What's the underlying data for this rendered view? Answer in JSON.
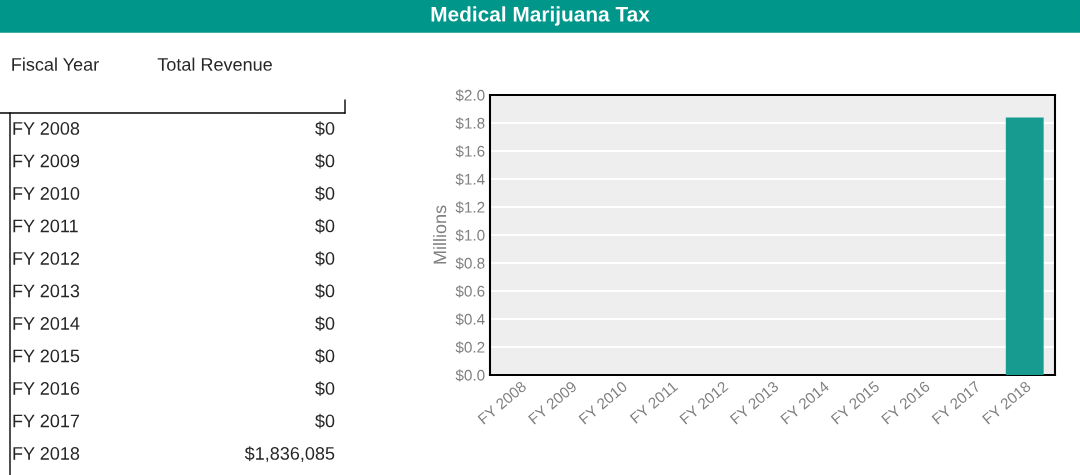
{
  "chart_data": {
    "type": "bar",
    "title": "Medical Marijuana Tax",
    "ylabel": "Millions",
    "annotations": [
      "Fiscal Year",
      "Total Revenue",
      "FY 2008",
      "$0",
      "FY 2009",
      "$0",
      "FY 2010",
      "$0",
      "FY 2011",
      "$0",
      "FY 2012",
      "$0",
      "FY 2013",
      "$0",
      "FY 2014",
      "$0",
      "FY 2015",
      "$0",
      "FY 2016",
      "$0",
      "FY 2017",
      "$0",
      "FY 2018",
      "$1,836,085"
    ],
    "categories": [
      "FY 2008",
      "FY 2009",
      "FY 2010",
      "FY 2011",
      "FY 2012",
      "FY 2013",
      "FY 2014",
      "FY 2015",
      "FY 2016",
      "FY 2017",
      "FY 2018"
    ],
    "values": [
      0,
      0,
      0,
      0,
      0,
      0,
      0,
      0,
      0,
      0,
      1.84
    ],
    "color": "#179a90",
    "ylim": [
      0,
      2.0
    ],
    "yticks": [
      {
        "value": 0,
        "label": "$0.0"
      },
      {
        "value": 0.2,
        "label": "$0.2"
      },
      {
        "value": 0.4,
        "label": "$0.4"
      },
      {
        "value": 0.6,
        "label": "$0.6"
      },
      {
        "value": 0.8,
        "label": "$0.8"
      },
      {
        "value": 1.0,
        "label": "$1.0"
      },
      {
        "value": 1.2,
        "label": "$1.2"
      },
      {
        "value": 1.4,
        "label": "$1.4"
      },
      {
        "value": 1.6,
        "label": "$1.6"
      },
      {
        "value": 1.8,
        "label": "$1.8"
      },
      {
        "value": 2.0,
        "label": "$2.0"
      }
    ],
    "grid": "y"
  }
}
